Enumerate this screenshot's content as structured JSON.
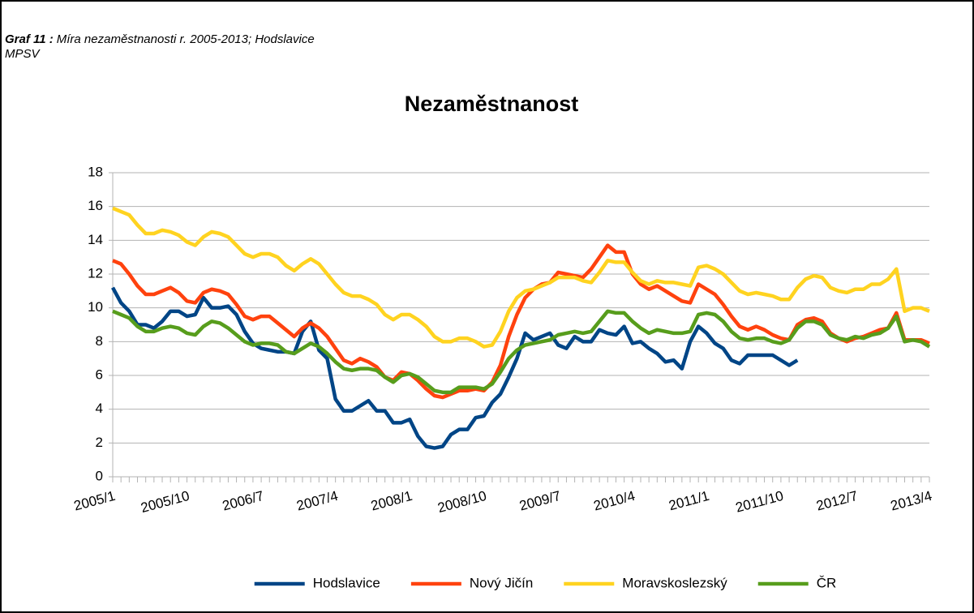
{
  "chart_data": {
    "type": "line",
    "caption_label": "Graf 11 :",
    "caption": "Míra nezaměstnanosti r. 2005-2013; Hodslavice",
    "source": "MPSV",
    "title": "Nezaměstnanost",
    "categories": [
      "2005/1",
      null,
      null,
      null,
      null,
      null,
      null,
      null,
      null,
      "2005/10",
      null,
      null,
      null,
      null,
      null,
      null,
      null,
      null,
      "2006/7",
      null,
      null,
      null,
      null,
      null,
      null,
      null,
      null,
      "2007/4",
      null,
      null,
      null,
      null,
      null,
      null,
      null,
      null,
      "2008/1",
      null,
      null,
      null,
      null,
      null,
      null,
      null,
      null,
      "2008/10",
      null,
      null,
      null,
      null,
      null,
      null,
      null,
      null,
      "2009/7",
      null,
      null,
      null,
      null,
      null,
      null,
      null,
      null,
      "2010/4",
      null,
      null,
      null,
      null,
      null,
      null,
      null,
      null,
      "2011/1",
      null,
      null,
      null,
      null,
      null,
      null,
      null,
      null,
      "2011/10",
      null,
      null,
      null,
      null,
      null,
      null,
      null,
      null,
      "2012/7",
      null,
      null,
      null,
      null,
      null,
      null,
      null,
      null,
      "2013/4"
    ],
    "series": [
      {
        "name": "Hodslavice",
        "color": "#004586",
        "values": [
          11.2,
          10.3,
          9.8,
          9.0,
          9.0,
          8.8,
          9.2,
          9.8,
          9.8,
          9.5,
          9.6,
          10.6,
          10.0,
          10.0,
          10.1,
          9.6,
          8.6,
          7.9,
          7.6,
          7.5,
          7.4,
          7.4,
          7.3,
          8.6,
          9.2,
          7.5,
          7.0,
          4.6,
          3.9,
          3.9,
          4.2,
          4.5,
          3.9,
          3.9,
          3.2,
          3.2,
          3.4,
          2.4,
          1.8,
          1.7,
          1.8,
          2.5,
          2.8,
          2.8,
          3.5,
          3.6,
          4.4,
          4.9,
          5.9,
          7.0,
          8.5,
          8.1,
          8.3,
          8.5,
          7.8,
          7.6,
          8.3,
          8.0,
          8.0,
          8.7,
          8.5,
          8.4,
          8.9,
          7.9,
          8.0,
          7.6,
          7.3,
          6.8,
          6.9,
          6.4,
          8.0,
          8.9,
          8.5,
          7.9,
          7.6,
          6.9,
          6.7,
          7.2,
          7.2,
          7.2,
          7.2,
          6.9,
          6.6,
          6.9,
          null,
          null,
          null,
          null,
          null,
          null,
          null,
          null,
          null,
          null,
          null,
          null,
          null,
          null,
          null,
          null
        ]
      },
      {
        "name": "Nový Jičín",
        "color": "#ff420e",
        "values": [
          12.8,
          12.6,
          12.0,
          11.3,
          10.8,
          10.8,
          11.0,
          11.2,
          10.9,
          10.4,
          10.3,
          10.9,
          11.1,
          11.0,
          10.8,
          10.2,
          9.5,
          9.3,
          9.5,
          9.5,
          9.1,
          8.7,
          8.3,
          8.8,
          9.1,
          8.8,
          8.3,
          7.6,
          6.9,
          6.7,
          7.0,
          6.8,
          6.5,
          5.9,
          5.7,
          6.2,
          6.1,
          5.7,
          5.2,
          4.8,
          4.7,
          4.9,
          5.1,
          5.1,
          5.2,
          5.1,
          5.6,
          6.6,
          8.3,
          9.6,
          10.6,
          11.1,
          11.4,
          11.5,
          12.1,
          12.0,
          11.9,
          11.8,
          12.3,
          13.0,
          13.7,
          13.3,
          13.3,
          12.0,
          11.4,
          11.1,
          11.3,
          11.0,
          10.7,
          10.4,
          10.3,
          11.4,
          11.1,
          10.8,
          10.2,
          9.5,
          8.9,
          8.7,
          8.9,
          8.7,
          8.4,
          8.2,
          8.1,
          9.0,
          9.3,
          9.4,
          9.2,
          8.5,
          8.2,
          8.0,
          8.2,
          8.3,
          8.5,
          8.7,
          8.8,
          9.7,
          8.1,
          8.1,
          8.1,
          7.9
        ]
      },
      {
        "name": "Moravskoslezský",
        "color": "#ffd320",
        "values": [
          15.9,
          15.7,
          15.5,
          14.9,
          14.4,
          14.4,
          14.6,
          14.5,
          14.3,
          13.9,
          13.7,
          14.2,
          14.5,
          14.4,
          14.2,
          13.7,
          13.2,
          13.0,
          13.2,
          13.2,
          13.0,
          12.5,
          12.2,
          12.6,
          12.9,
          12.6,
          12.0,
          11.4,
          10.9,
          10.7,
          10.7,
          10.5,
          10.2,
          9.6,
          9.3,
          9.6,
          9.6,
          9.3,
          8.9,
          8.3,
          8.0,
          8.0,
          8.2,
          8.2,
          8.0,
          7.7,
          7.8,
          8.6,
          9.8,
          10.6,
          11.0,
          11.1,
          11.3,
          11.5,
          11.8,
          11.8,
          11.8,
          11.6,
          11.5,
          12.1,
          12.8,
          12.7,
          12.7,
          12.1,
          11.6,
          11.4,
          11.6,
          11.5,
          11.5,
          11.4,
          11.3,
          12.4,
          12.5,
          12.3,
          12.0,
          11.5,
          11.0,
          10.8,
          10.9,
          10.8,
          10.7,
          10.5,
          10.5,
          11.2,
          11.7,
          11.9,
          11.8,
          11.2,
          11.0,
          10.9,
          11.1,
          11.1,
          11.4,
          11.4,
          11.7,
          12.3,
          9.8,
          10.0,
          10.0,
          9.8
        ]
      },
      {
        "name": "ČR",
        "color": "#579d1c",
        "values": [
          9.8,
          9.6,
          9.4,
          8.9,
          8.6,
          8.6,
          8.8,
          8.9,
          8.8,
          8.5,
          8.4,
          8.9,
          9.2,
          9.1,
          8.8,
          8.4,
          8.0,
          7.8,
          7.9,
          7.9,
          7.8,
          7.4,
          7.3,
          7.6,
          7.9,
          7.7,
          7.3,
          6.8,
          6.4,
          6.3,
          6.4,
          6.4,
          6.3,
          5.9,
          5.6,
          6.0,
          6.1,
          5.9,
          5.5,
          5.1,
          5.0,
          5.0,
          5.3,
          5.3,
          5.3,
          5.2,
          5.5,
          6.2,
          7.0,
          7.5,
          7.8,
          7.9,
          8.0,
          8.1,
          8.4,
          8.5,
          8.6,
          8.5,
          8.6,
          9.2,
          9.8,
          9.7,
          9.7,
          9.2,
          8.8,
          8.5,
          8.7,
          8.6,
          8.5,
          8.5,
          8.6,
          9.6,
          9.7,
          9.6,
          9.2,
          8.6,
          8.2,
          8.1,
          8.2,
          8.2,
          8.0,
          7.9,
          8.1,
          8.8,
          9.2,
          9.2,
          9.0,
          8.4,
          8.2,
          8.1,
          8.3,
          8.2,
          8.4,
          8.5,
          8.8,
          9.5,
          8.0,
          8.1,
          8.0,
          7.7
        ]
      }
    ],
    "ylim": [
      0,
      18
    ],
    "yticks": [
      0,
      2,
      4,
      6,
      8,
      10,
      12,
      14,
      16,
      18
    ],
    "grid": true,
    "legend": "bottom"
  }
}
